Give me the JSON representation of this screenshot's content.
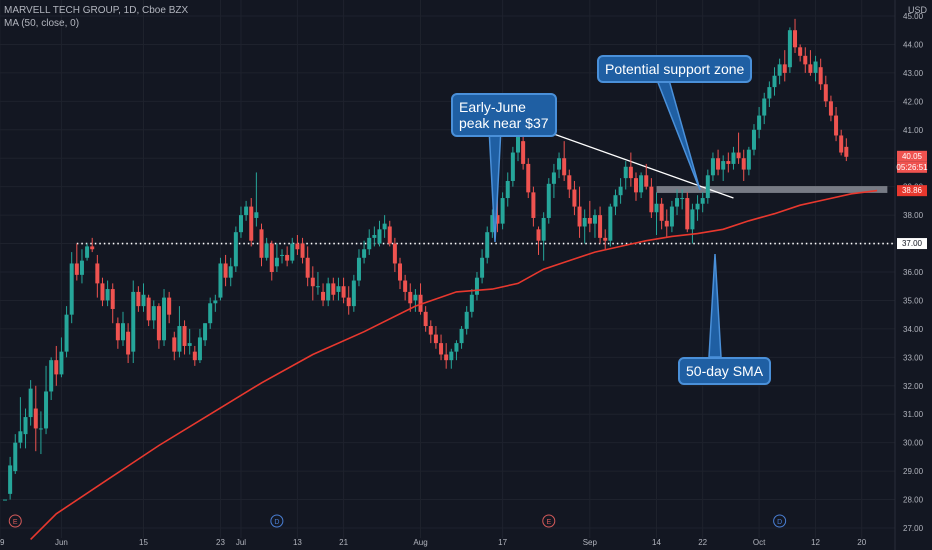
{
  "header": {
    "symbol_line": "MARVELL TECH GROUP, 1D, Cboe BZX",
    "indicator_line": "MA (50, close, 0)",
    "currency": "USD"
  },
  "colors": {
    "background": "#131722",
    "up": "#26a69a",
    "down": "#ef5350",
    "ma": "#e8382e",
    "grid": "#1e222d",
    "callout_fill": "#1f5fa3",
    "callout_border": "#4a90d9",
    "support_zone": "#8a8d96"
  },
  "price_tags": {
    "last_price": "40.05",
    "countdown": "05:26:51",
    "ma_value": "38.86",
    "dotted_level": "37.00"
  },
  "annotations": {
    "early_june": "Early-June\npeak near $37",
    "support": "Potential support zone",
    "sma": "50-day SMA"
  },
  "event_markers": [
    {
      "label": "E",
      "index": 2
    },
    {
      "label": "D",
      "index": 53
    },
    {
      "label": "E",
      "index": 106
    },
    {
      "label": "D",
      "index": 151
    }
  ],
  "chart_data": {
    "type": "candlestick",
    "title": "MARVELL TECH GROUP, 1D, Cboe BZX",
    "ylabel": "USD",
    "ylim": [
      27,
      45.2
    ],
    "y_ticks": [
      27,
      28,
      29,
      30,
      31,
      32,
      33,
      34,
      35,
      36,
      37,
      38,
      39,
      40,
      41,
      42,
      43,
      44,
      45
    ],
    "x_ticks": [
      {
        "label": "9",
        "index": -1
      },
      {
        "label": "Jun",
        "index": 11
      },
      {
        "label": "15",
        "index": 27
      },
      {
        "label": "23",
        "index": 42
      },
      {
        "label": "Jul",
        "index": 46
      },
      {
        "label": "13",
        "index": 57
      },
      {
        "label": "21",
        "index": 66
      },
      {
        "label": "Aug",
        "index": 81
      },
      {
        "label": "17",
        "index": 97
      },
      {
        "label": "Sep",
        "index": 114
      },
      {
        "label": "14",
        "index": 127
      },
      {
        "label": "22",
        "index": 136
      },
      {
        "label": "Oct",
        "index": 147
      },
      {
        "label": "12",
        "index": 158
      },
      {
        "label": "20",
        "index": 167
      }
    ],
    "candles": [
      [
        28.0,
        28.0,
        28.0,
        28.0
      ],
      [
        28.2,
        29.5,
        28.0,
        29.2
      ],
      [
        29.0,
        30.3,
        28.9,
        30.0
      ],
      [
        30.0,
        31.6,
        29.8,
        30.4
      ],
      [
        30.3,
        31.2,
        29.8,
        30.9
      ],
      [
        30.9,
        32.2,
        30.6,
        31.9
      ],
      [
        31.2,
        32.0,
        29.7,
        30.5
      ],
      [
        30.5,
        31.1,
        29.6,
        30.5
      ],
      [
        30.5,
        32.7,
        30.3,
        31.8
      ],
      [
        31.8,
        33.0,
        31.5,
        32.9
      ],
      [
        32.9,
        33.4,
        32.0,
        32.4
      ],
      [
        32.4,
        33.7,
        32.3,
        33.2
      ],
      [
        33.2,
        34.8,
        33.0,
        34.5
      ],
      [
        34.5,
        36.7,
        34.2,
        36.3
      ],
      [
        36.3,
        37.0,
        35.7,
        35.9
      ],
      [
        35.9,
        36.8,
        35.6,
        36.4
      ],
      [
        36.5,
        37.0,
        36.4,
        36.9
      ],
      [
        36.9,
        37.2,
        36.7,
        36.8
      ],
      [
        36.3,
        36.6,
        35.1,
        35.6
      ],
      [
        35.6,
        35.8,
        34.8,
        35.0
      ],
      [
        35.0,
        35.7,
        34.8,
        35.4
      ],
      [
        35.4,
        35.6,
        34.2,
        34.7
      ],
      [
        34.2,
        34.4,
        33.3,
        33.6
      ],
      [
        33.6,
        34.6,
        33.4,
        34.2
      ],
      [
        33.9,
        34.2,
        32.8,
        33.1
      ],
      [
        33.2,
        35.7,
        32.8,
        35.3
      ],
      [
        35.3,
        35.5,
        34.6,
        34.8
      ],
      [
        34.8,
        35.6,
        34.6,
        35.2
      ],
      [
        35.1,
        35.2,
        34.1,
        34.3
      ],
      [
        34.3,
        35.0,
        34.0,
        34.8
      ],
      [
        34.8,
        34.9,
        33.3,
        33.6
      ],
      [
        33.6,
        35.4,
        33.4,
        35.1
      ],
      [
        35.1,
        35.3,
        34.2,
        34.5
      ],
      [
        33.7,
        33.9,
        32.9,
        33.2
      ],
      [
        33.2,
        34.8,
        33.0,
        34.1
      ],
      [
        34.1,
        34.3,
        33.1,
        33.4
      ],
      [
        33.4,
        34.0,
        33.1,
        33.5
      ],
      [
        33.2,
        33.4,
        32.7,
        32.9
      ],
      [
        32.9,
        34.0,
        32.8,
        33.7
      ],
      [
        33.6,
        34.2,
        33.4,
        34.2
      ],
      [
        34.2,
        35.1,
        34.0,
        34.9
      ],
      [
        34.9,
        35.2,
        34.6,
        35.0
      ],
      [
        35.1,
        36.5,
        35.0,
        36.3
      ],
      [
        36.3,
        36.6,
        35.5,
        35.8
      ],
      [
        35.8,
        36.5,
        35.5,
        36.2
      ],
      [
        36.2,
        37.6,
        36.0,
        37.4
      ],
      [
        37.4,
        38.3,
        37.2,
        38.0
      ],
      [
        38.0,
        38.5,
        37.8,
        38.3
      ],
      [
        38.3,
        38.6,
        36.9,
        37.1
      ],
      [
        37.9,
        39.5,
        37.6,
        38.1
      ],
      [
        37.5,
        37.7,
        36.2,
        36.5
      ],
      [
        36.5,
        37.2,
        36.4,
        37.0
      ],
      [
        37.0,
        37.1,
        35.7,
        36.0
      ],
      [
        36.2,
        37.0,
        36.0,
        36.5
      ],
      [
        36.6,
        36.8,
        36.3,
        36.6
      ],
      [
        36.6,
        36.9,
        36.2,
        36.4
      ],
      [
        36.4,
        37.2,
        36.3,
        37.0
      ],
      [
        37.0,
        37.3,
        36.6,
        36.8
      ],
      [
        37.0,
        37.2,
        36.3,
        36.5
      ],
      [
        36.5,
        36.9,
        35.5,
        35.8
      ],
      [
        35.8,
        36.2,
        35.0,
        35.5
      ],
      [
        35.5,
        36.0,
        35.2,
        35.5
      ],
      [
        35.3,
        35.6,
        34.8,
        35.0
      ],
      [
        35.0,
        35.8,
        34.8,
        35.6
      ],
      [
        35.6,
        35.8,
        35.0,
        35.2
      ],
      [
        35.3,
        35.8,
        35.0,
        35.5
      ],
      [
        35.5,
        35.8,
        34.9,
        35.1
      ],
      [
        35.1,
        35.5,
        34.5,
        34.8
      ],
      [
        34.8,
        35.9,
        34.6,
        35.7
      ],
      [
        35.7,
        36.8,
        35.5,
        36.5
      ],
      [
        36.5,
        37.1,
        36.3,
        36.8
      ],
      [
        36.8,
        37.5,
        36.6,
        37.2
      ],
      [
        37.2,
        37.6,
        36.9,
        37.3
      ],
      [
        37.0,
        37.8,
        36.9,
        37.5
      ],
      [
        37.5,
        38.0,
        37.2,
        37.7
      ],
      [
        37.6,
        37.8,
        36.9,
        37.0
      ],
      [
        37.0,
        37.2,
        36.0,
        36.3
      ],
      [
        36.3,
        36.5,
        35.4,
        35.7
      ],
      [
        35.7,
        35.9,
        35.0,
        35.3
      ],
      [
        35.3,
        35.6,
        34.6,
        34.9
      ],
      [
        35.0,
        35.4,
        34.6,
        35.2
      ],
      [
        35.2,
        35.6,
        34.5,
        34.6
      ],
      [
        34.6,
        34.8,
        33.9,
        34.1
      ],
      [
        34.1,
        34.3,
        33.5,
        33.8
      ],
      [
        33.8,
        34.1,
        33.3,
        33.5
      ],
      [
        33.5,
        33.8,
        32.9,
        33.1
      ],
      [
        33.1,
        33.5,
        32.6,
        32.9
      ],
      [
        32.9,
        33.3,
        32.6,
        33.2
      ],
      [
        33.2,
        33.6,
        32.9,
        33.5
      ],
      [
        33.5,
        34.1,
        33.3,
        34.0
      ],
      [
        34.0,
        34.8,
        33.8,
        34.6
      ],
      [
        34.6,
        35.4,
        34.4,
        35.2
      ],
      [
        35.2,
        36.0,
        35.0,
        35.8
      ],
      [
        35.8,
        36.8,
        35.6,
        36.5
      ],
      [
        36.5,
        37.6,
        36.3,
        37.4
      ],
      [
        37.4,
        38.2,
        37.2,
        38.0
      ],
      [
        38.0,
        38.7,
        37.4,
        37.7
      ],
      [
        37.7,
        38.8,
        37.5,
        38.6
      ],
      [
        38.6,
        39.5,
        38.3,
        39.2
      ],
      [
        39.2,
        40.4,
        39.0,
        40.2
      ],
      [
        40.2,
        41.3,
        39.9,
        41.0
      ],
      [
        40.6,
        40.9,
        39.6,
        39.8
      ],
      [
        39.8,
        40.0,
        38.6,
        38.8
      ],
      [
        38.8,
        39.0,
        37.6,
        37.9
      ],
      [
        37.5,
        37.6,
        36.6,
        37.1
      ],
      [
        37.1,
        38.1,
        36.4,
        37.9
      ],
      [
        37.9,
        39.3,
        37.7,
        39.1
      ],
      [
        39.1,
        39.8,
        38.6,
        39.5
      ],
      [
        39.6,
        40.2,
        39.3,
        40.0
      ],
      [
        40.0,
        40.6,
        39.2,
        39.4
      ],
      [
        39.4,
        39.6,
        38.6,
        38.9
      ],
      [
        38.9,
        39.2,
        38.0,
        38.3
      ],
      [
        38.3,
        39.0,
        37.2,
        37.6
      ],
      [
        37.6,
        38.2,
        37.0,
        37.9
      ],
      [
        37.9,
        38.5,
        37.4,
        37.7
      ],
      [
        37.7,
        38.2,
        37.2,
        38.0
      ],
      [
        38.0,
        38.3,
        37.0,
        37.2
      ],
      [
        37.2,
        37.5,
        36.8,
        37.1
      ],
      [
        37.1,
        38.4,
        36.9,
        38.3
      ],
      [
        38.3,
        38.9,
        38.0,
        38.7
      ],
      [
        38.7,
        39.3,
        38.4,
        39.0
      ],
      [
        39.3,
        39.9,
        38.9,
        39.7
      ],
      [
        39.7,
        40.2,
        39.0,
        39.3
      ],
      [
        39.3,
        39.5,
        38.5,
        38.8
      ],
      [
        38.8,
        39.5,
        38.6,
        39.4
      ],
      [
        39.4,
        39.8,
        38.9,
        39.0
      ],
      [
        39.0,
        39.3,
        37.9,
        38.1
      ],
      [
        38.1,
        38.8,
        37.3,
        38.4
      ],
      [
        38.4,
        38.6,
        37.5,
        37.8
      ],
      [
        37.8,
        38.2,
        37.2,
        37.6
      ],
      [
        37.6,
        38.5,
        37.4,
        38.3
      ],
      [
        38.3,
        38.9,
        38.0,
        38.6
      ],
      [
        38.6,
        38.9,
        38.2,
        38.6
      ],
      [
        38.6,
        38.8,
        37.4,
        37.5
      ],
      [
        37.5,
        38.4,
        37.0,
        38.2
      ],
      [
        38.2,
        38.7,
        37.8,
        38.4
      ],
      [
        38.4,
        38.8,
        38.1,
        38.6
      ],
      [
        38.6,
        39.6,
        38.4,
        39.4
      ],
      [
        39.4,
        40.2,
        39.2,
        40.0
      ],
      [
        40.0,
        40.3,
        39.4,
        39.6
      ],
      [
        39.6,
        40.1,
        39.2,
        39.9
      ],
      [
        39.9,
        40.2,
        39.5,
        39.8
      ],
      [
        39.8,
        40.4,
        39.6,
        40.2
      ],
      [
        40.2,
        40.9,
        39.8,
        40.0
      ],
      [
        40.0,
        40.3,
        39.2,
        39.6
      ],
      [
        39.6,
        40.4,
        39.4,
        40.3
      ],
      [
        40.3,
        41.2,
        40.1,
        41.0
      ],
      [
        41.0,
        41.8,
        40.7,
        41.5
      ],
      [
        41.5,
        42.3,
        41.2,
        42.1
      ],
      [
        42.1,
        42.7,
        41.8,
        42.5
      ],
      [
        42.5,
        43.2,
        42.2,
        42.9
      ],
      [
        42.9,
        43.5,
        42.6,
        43.3
      ],
      [
        43.3,
        43.8,
        42.7,
        43.0
      ],
      [
        43.2,
        44.6,
        43.0,
        44.5
      ],
      [
        44.5,
        44.9,
        43.7,
        43.9
      ],
      [
        43.9,
        44.0,
        43.4,
        43.6
      ],
      [
        43.6,
        43.9,
        43.0,
        43.3
      ],
      [
        43.3,
        43.8,
        42.9,
        43.0
      ],
      [
        43.0,
        43.6,
        42.7,
        43.4
      ],
      [
        43.2,
        43.5,
        42.4,
        42.6
      ],
      [
        42.6,
        42.9,
        41.8,
        42.0
      ],
      [
        42.0,
        42.2,
        41.3,
        41.5
      ],
      [
        41.5,
        41.8,
        40.6,
        40.8
      ],
      [
        40.8,
        41.0,
        40.1,
        40.2
      ],
      [
        40.4,
        40.7,
        39.9,
        40.05
      ]
    ],
    "ma50": [
      [
        5,
        26.6
      ],
      [
        10,
        27.5
      ],
      [
        20,
        28.7
      ],
      [
        30,
        29.9
      ],
      [
        40,
        31.0
      ],
      [
        50,
        32.1
      ],
      [
        60,
        33.1
      ],
      [
        70,
        33.9
      ],
      [
        80,
        34.8
      ],
      [
        88,
        35.3
      ],
      [
        95,
        35.4
      ],
      [
        100,
        35.6
      ],
      [
        105,
        36.1
      ],
      [
        110,
        36.4
      ],
      [
        115,
        36.7
      ],
      [
        120,
        36.9
      ],
      [
        125,
        37.1
      ],
      [
        130,
        37.25
      ],
      [
        135,
        37.35
      ],
      [
        140,
        37.5
      ],
      [
        145,
        37.8
      ],
      [
        150,
        38.05
      ],
      [
        155,
        38.35
      ],
      [
        160,
        38.55
      ],
      [
        165,
        38.75
      ],
      [
        170,
        38.86
      ]
    ],
    "overlays": {
      "dotted_level": 37.0,
      "trendline": [
        [
          100,
          41.3
        ],
        [
          142,
          38.6
        ]
      ],
      "support_zone": {
        "start_index": 127,
        "end_index": 172,
        "low": 38.78,
        "high": 39.02
      }
    }
  }
}
